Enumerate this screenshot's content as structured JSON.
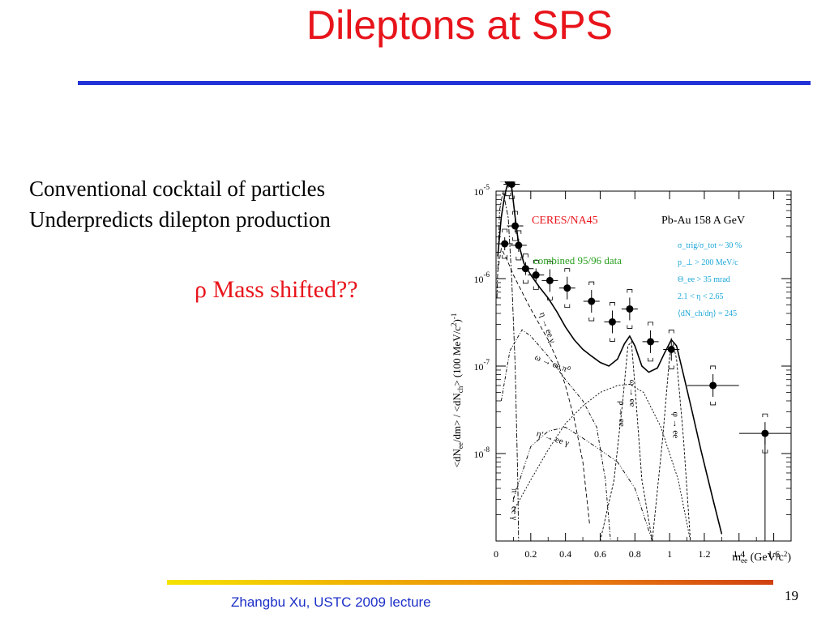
{
  "slide": {
    "title": "Dileptons at SPS",
    "bullet1": "Conventional cocktail of particles",
    "bullet2": "Underpredicts dilepton production",
    "note": "ρ Mass shifted??",
    "footer": "Zhangbu Xu, USTC 2009 lecture",
    "page": "19",
    "colors": {
      "title": "#e8141b",
      "rule": "#2232d6",
      "footer": "#1c2fc8",
      "note": "#e8141b"
    }
  },
  "chart_data": {
    "type": "scatter",
    "x_scale": "linear",
    "y_scale": "log",
    "xlim": [
      0,
      1.7
    ],
    "ylim": [
      1e-09,
      1e-05
    ],
    "x_ticks": [
      "0",
      "0.2",
      "0.4",
      "0.6",
      "0.8",
      "1",
      "1.2",
      "1.4",
      "1.6"
    ],
    "y_ticks": [
      {
        "base": "10",
        "exp": "-5"
      },
      {
        "base": "10",
        "exp": "-6"
      },
      {
        "base": "10",
        "exp": "-7"
      },
      {
        "base": "10",
        "exp": "-8"
      }
    ],
    "xlabel": {
      "main": "m",
      "sub": "ee",
      "unit": " (GeV/c",
      "sup": "2",
      "close": ")"
    },
    "ylabel": "<dN_ee/dm> / <dN_ch> (100 MeV/c²)⁻¹",
    "experiment": "CERES/NA45",
    "system": "Pb-Au 158 A GeV",
    "dataset": "combined 95/96 data",
    "cuts": [
      "σ_trig/σ_tot ~ 30 %",
      "p_⊥ > 200 MeV/c",
      "Θ_ee > 35 mrad",
      "2.1 < η < 2.65",
      "⟨dN_ch/dη⟩ = 245"
    ],
    "channel_labels": [
      "η → ee γ",
      "ω → ee π⁰",
      "ω → ee",
      "ρ → ee",
      "φ → ee",
      "η' → ee γ",
      "π → ee γ"
    ],
    "series": [
      {
        "name": "combined 95/96 data",
        "points": [
          {
            "x": 0.05,
            "y": 2.5e-06
          },
          {
            "x": 0.07,
            "y": 1.3e-05
          },
          {
            "x": 0.09,
            "y": 1.2e-05
          },
          {
            "x": 0.11,
            "y": 4e-06
          },
          {
            "x": 0.13,
            "y": 2.4e-06
          },
          {
            "x": 0.17,
            "y": 1.3e-06
          },
          {
            "x": 0.23,
            "y": 1.1e-06
          },
          {
            "x": 0.31,
            "y": 9.5e-07
          },
          {
            "x": 0.41,
            "y": 7.8e-07
          },
          {
            "x": 0.55,
            "y": 5.5e-07
          },
          {
            "x": 0.67,
            "y": 3.2e-07
          },
          {
            "x": 0.77,
            "y": 4.5e-07
          },
          {
            "x": 0.89,
            "y": 1.9e-07
          },
          {
            "x": 1.01,
            "y": 1.55e-07
          },
          {
            "x": 1.25,
            "y": 6e-08
          },
          {
            "x": 1.55,
            "y": 1.7e-08
          }
        ]
      },
      {
        "name": "cocktail total",
        "points": [
          {
            "x": 0.01,
            "y": 1.8e-06
          },
          {
            "x": 0.03,
            "y": 5e-06
          },
          {
            "x": 0.05,
            "y": 9e-06
          },
          {
            "x": 0.07,
            "y": 1.3e-05
          },
          {
            "x": 0.09,
            "y": 1.1e-05
          },
          {
            "x": 0.11,
            "y": 5e-06
          },
          {
            "x": 0.13,
            "y": 2.5e-06
          },
          {
            "x": 0.16,
            "y": 1.5e-06
          },
          {
            "x": 0.2,
            "y": 1.1e-06
          },
          {
            "x": 0.25,
            "y": 8e-07
          },
          {
            "x": 0.3,
            "y": 6e-07
          },
          {
            "x": 0.35,
            "y": 4.2e-07
          },
          {
            "x": 0.4,
            "y": 2.8e-07
          },
          {
            "x": 0.45,
            "y": 2e-07
          },
          {
            "x": 0.5,
            "y": 1.55e-07
          },
          {
            "x": 0.55,
            "y": 1.3e-07
          },
          {
            "x": 0.6,
            "y": 1.1e-07
          },
          {
            "x": 0.65,
            "y": 1e-07
          },
          {
            "x": 0.7,
            "y": 1.2e-07
          },
          {
            "x": 0.74,
            "y": 1.8e-07
          },
          {
            "x": 0.77,
            "y": 2.2e-07
          },
          {
            "x": 0.8,
            "y": 1.7e-07
          },
          {
            "x": 0.84,
            "y": 1e-07
          },
          {
            "x": 0.88,
            "y": 8.5e-08
          },
          {
            "x": 0.93,
            "y": 9.5e-08
          },
          {
            "x": 0.97,
            "y": 1.4e-07
          },
          {
            "x": 1.01,
            "y": 2e-07
          },
          {
            "x": 1.04,
            "y": 1.7e-07
          },
          {
            "x": 1.08,
            "y": 8e-08
          },
          {
            "x": 1.13,
            "y": 3e-08
          },
          {
            "x": 1.18,
            "y": 1.1e-08
          },
          {
            "x": 1.25,
            "y": 3e-09
          },
          {
            "x": 1.3,
            "y": 1.2e-09
          }
        ]
      },
      {
        "name": "η → ee γ",
        "points": [
          {
            "x": 0.01,
            "y": 1.2e-06
          },
          {
            "x": 0.03,
            "y": 2.2e-06
          },
          {
            "x": 0.06,
            "y": 1.7e-06
          },
          {
            "x": 0.1,
            "y": 1.1e-06
          },
          {
            "x": 0.15,
            "y": 7e-07
          },
          {
            "x": 0.2,
            "y": 4.5e-07
          },
          {
            "x": 0.25,
            "y": 3e-07
          },
          {
            "x": 0.3,
            "y": 2e-07
          },
          {
            "x": 0.35,
            "y": 1.2e-07
          },
          {
            "x": 0.4,
            "y": 6e-08
          },
          {
            "x": 0.45,
            "y": 2.5e-08
          },
          {
            "x": 0.5,
            "y": 8e-09
          },
          {
            "x": 0.54,
            "y": 1.5e-09
          }
        ]
      },
      {
        "name": "π → ee γ",
        "points": [
          {
            "x": 0.005,
            "y": 6e-07
          },
          {
            "x": 0.02,
            "y": 6e-06
          },
          {
            "x": 0.04,
            "y": 1e-05
          },
          {
            "x": 0.07,
            "y": 5e-06
          },
          {
            "x": 0.09,
            "y": 1e-06
          },
          {
            "x": 0.11,
            "y": 1e-07
          },
          {
            "x": 0.125,
            "y": 5e-09
          },
          {
            "x": 0.13,
            "y": 1e-09
          }
        ]
      },
      {
        "name": "ω → ee π⁰",
        "points": [
          {
            "x": 0.03,
            "y": 4e-08
          },
          {
            "x": 0.08,
            "y": 1.5e-07
          },
          {
            "x": 0.15,
            "y": 2.6e-07
          },
          {
            "x": 0.2,
            "y": 2.2e-07
          },
          {
            "x": 0.3,
            "y": 1.3e-07
          },
          {
            "x": 0.4,
            "y": 7e-08
          },
          {
            "x": 0.5,
            "y": 4e-08
          },
          {
            "x": 0.58,
            "y": 2e-08
          },
          {
            "x": 0.63,
            "y": 5e-09
          },
          {
            "x": 0.66,
            "y": 1e-09
          }
        ]
      },
      {
        "name": "ρ → ee",
        "points": [
          {
            "x": 0.1,
            "y": 2.2e-09
          },
          {
            "x": 0.2,
            "y": 5e-09
          },
          {
            "x": 0.3,
            "y": 1.1e-08
          },
          {
            "x": 0.4,
            "y": 2.2e-08
          },
          {
            "x": 0.5,
            "y": 3.5e-08
          },
          {
            "x": 0.6,
            "y": 5e-08
          },
          {
            "x": 0.7,
            "y": 6e-08
          },
          {
            "x": 0.77,
            "y": 6.2e-08
          },
          {
            "x": 0.85,
            "y": 5e-08
          },
          {
            "x": 0.95,
            "y": 2e-08
          },
          {
            "x": 1.05,
            "y": 5e-09
          },
          {
            "x": 1.12,
            "y": 1e-09
          }
        ]
      },
      {
        "name": "ω → ee",
        "points": [
          {
            "x": 0.6,
            "y": 1e-09
          },
          {
            "x": 0.68,
            "y": 5e-09
          },
          {
            "x": 0.73,
            "y": 4e-08
          },
          {
            "x": 0.76,
            "y": 1.7e-07
          },
          {
            "x": 0.78,
            "y": 1.9e-07
          },
          {
            "x": 0.8,
            "y": 6e-08
          },
          {
            "x": 0.84,
            "y": 5e-09
          },
          {
            "x": 0.9,
            "y": 1e-09
          }
        ]
      },
      {
        "name": "φ → ee",
        "points": [
          {
            "x": 0.9,
            "y": 1e-09
          },
          {
            "x": 0.96,
            "y": 1.5e-08
          },
          {
            "x": 1.0,
            "y": 1.3e-07
          },
          {
            "x": 1.02,
            "y": 1.8e-07
          },
          {
            "x": 1.04,
            "y": 1.2e-07
          },
          {
            "x": 1.08,
            "y": 1.5e-08
          },
          {
            "x": 1.12,
            "y": 1e-09
          }
        ]
      },
      {
        "name": "η' → ee γ",
        "points": [
          {
            "x": 0.1,
            "y": 3e-09
          },
          {
            "x": 0.2,
            "y": 1.2e-08
          },
          {
            "x": 0.3,
            "y": 1.8e-08
          },
          {
            "x": 0.4,
            "y": 2e-08
          },
          {
            "x": 0.5,
            "y": 1.5e-08
          },
          {
            "x": 0.6,
            "y": 1.1e-08
          },
          {
            "x": 0.7,
            "y": 8e-09
          },
          {
            "x": 0.8,
            "y": 4e-09
          },
          {
            "x": 0.9,
            "y": 1e-09
          }
        ]
      }
    ]
  }
}
